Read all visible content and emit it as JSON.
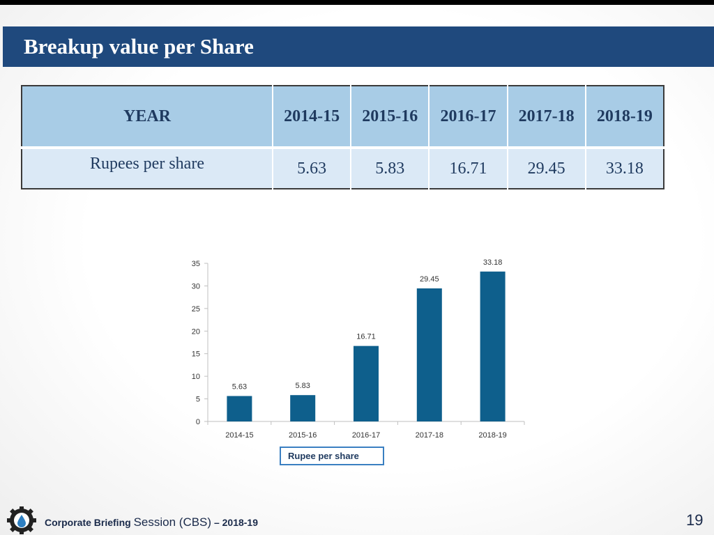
{
  "header": {
    "title": "Breakup value per Share"
  },
  "table": {
    "columns": [
      "YEAR",
      "2014-15",
      "2015-16",
      "2016-17",
      "2017-18",
      "2018-19"
    ],
    "row_label": "Rupees per share",
    "values": [
      "5.63",
      "5.83",
      "16.71",
      "29.45",
      "33.18"
    ]
  },
  "chart_data": {
    "type": "bar",
    "categories": [
      "2014-15",
      "2015-16",
      "2016-17",
      "2017-18",
      "2018-19"
    ],
    "series": [
      {
        "name": "Rupee per share",
        "values": [
          5.63,
          5.83,
          16.71,
          29.45,
          33.18
        ]
      }
    ],
    "data_labels": [
      "5.63",
      "5.83",
      "16.71",
      "29.45",
      "33.18"
    ],
    "ylim": [
      0,
      35
    ],
    "yticks": [
      0,
      5,
      10,
      15,
      20,
      25,
      30,
      35
    ],
    "title": "",
    "xlabel": "",
    "ylabel": "",
    "grid": false,
    "legend_position": "bottom",
    "bar_color": "#0e5f8c"
  },
  "legend": {
    "label": "Rupee per share"
  },
  "footer": {
    "part1": "Corporate Briefing ",
    "part2": "Session (CBS)",
    "part3": " – 2018-19",
    "page_number": "19"
  },
  "colors": {
    "title_band": "#1f497d",
    "table_header": "#a8cce6",
    "table_row": "#dbe9f6",
    "bar": "#0e5f8c"
  }
}
